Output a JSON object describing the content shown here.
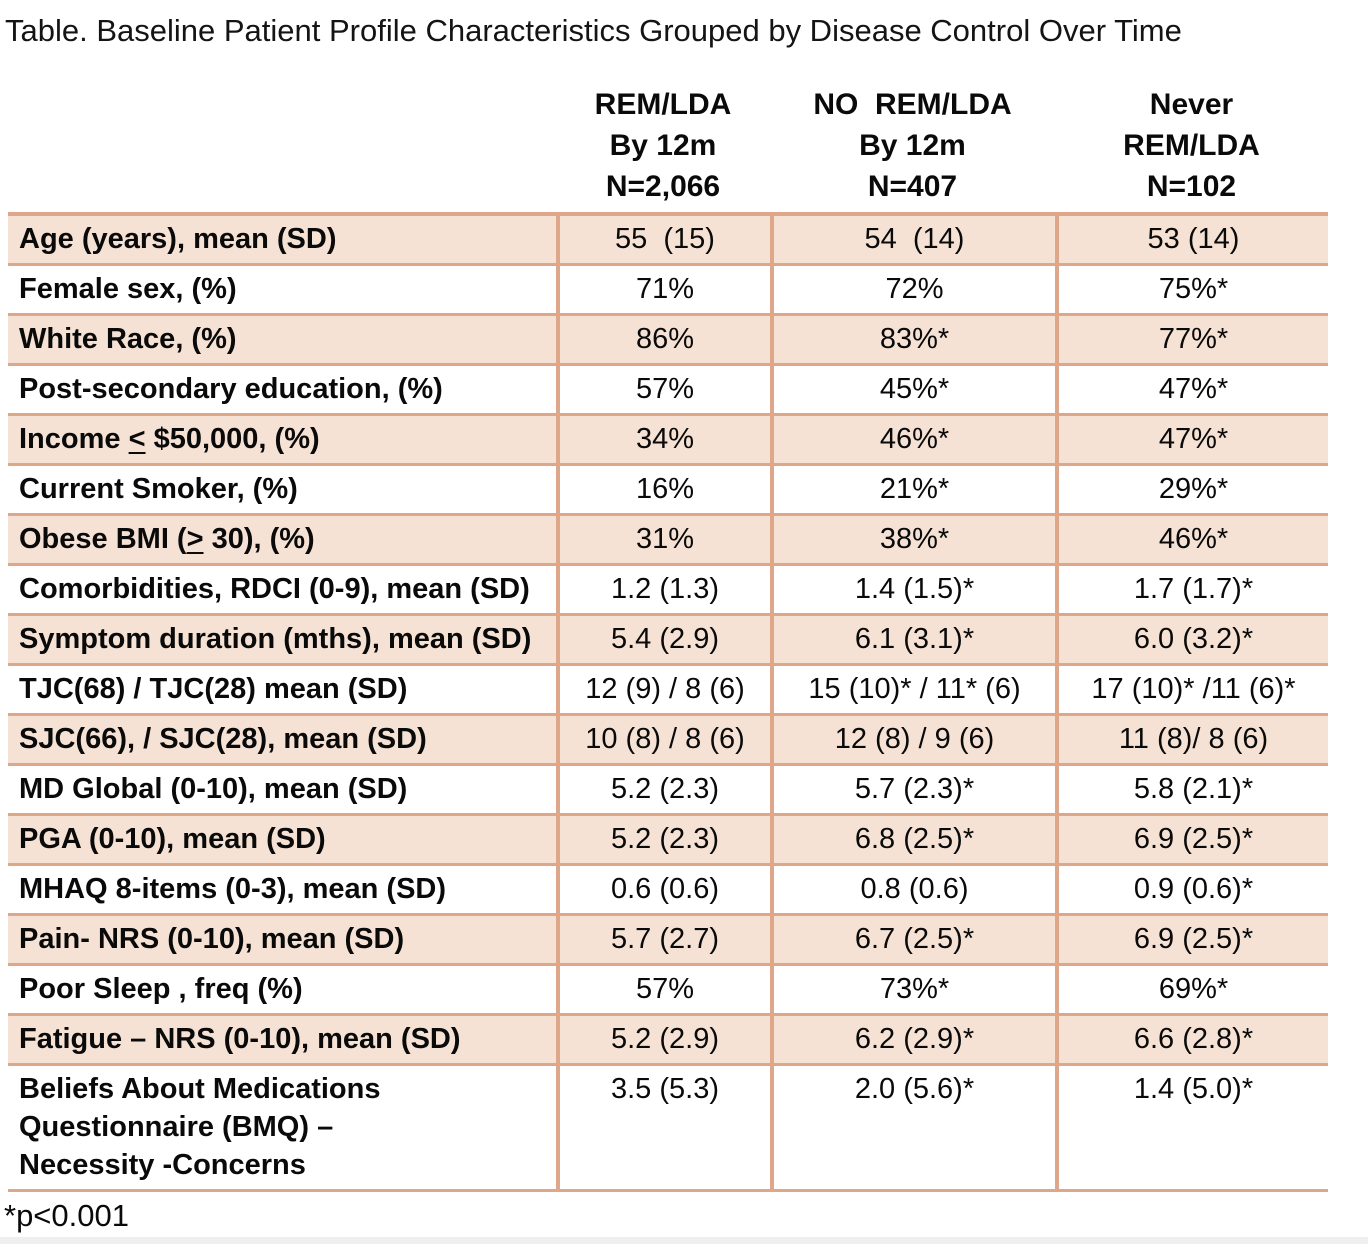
{
  "title": "Table. Baseline Patient Profile Characteristics Grouped by Disease Control Over Time",
  "footnote": "*p<0.001",
  "colors": {
    "row_shade": "#F5E2D4",
    "border": "#DFA78A"
  },
  "columns": [
    {
      "title": "REM/LDA\nBy 12m\nN=2,066"
    },
    {
      "title": "NO  REM/LDA\nBy 12m\nN=407"
    },
    {
      "title": "Never\nREM/LDA\nN=102"
    }
  ],
  "rows": [
    {
      "shaded": true,
      "label": [
        {
          "t": "Age (years), mean (SD)"
        }
      ],
      "values": [
        "55  (15)",
        "54  (14)",
        "53 (14)"
      ]
    },
    {
      "shaded": false,
      "label": [
        {
          "t": "Female sex, (%)"
        }
      ],
      "values": [
        "71%",
        "72%",
        "75%*"
      ]
    },
    {
      "shaded": true,
      "label": [
        {
          "t": "White Race, (%)"
        }
      ],
      "values": [
        "86%",
        "83%*",
        "77%*"
      ]
    },
    {
      "shaded": false,
      "label": [
        {
          "t": "Post-secondary education, (%)"
        }
      ],
      "values": [
        "57%",
        "45%*",
        "47%*"
      ]
    },
    {
      "shaded": true,
      "label": [
        {
          "t": "Income "
        },
        {
          "t": "<",
          "u": true
        },
        {
          "t": " $50,000, (%)"
        }
      ],
      "values": [
        "34%",
        "46%*",
        "47%*"
      ]
    },
    {
      "shaded": false,
      "label": [
        {
          "t": "Current Smoker, (%)"
        }
      ],
      "values": [
        "16%",
        "21%*",
        "29%*"
      ]
    },
    {
      "shaded": true,
      "label": [
        {
          "t": "Obese BMI ("
        },
        {
          "t": ">",
          "u": true
        },
        {
          "t": " 30), (%)"
        }
      ],
      "values": [
        "31%",
        "38%*",
        "46%*"
      ]
    },
    {
      "shaded": false,
      "label": [
        {
          "t": "Comorbidities, RDCI (0-9), mean (SD)"
        }
      ],
      "values": [
        "1.2 (1.3)",
        "1.4 (1.5)*",
        "1.7 (1.7)*"
      ]
    },
    {
      "shaded": true,
      "label": [
        {
          "t": "Symptom duration (mths), mean (SD)"
        }
      ],
      "values": [
        "5.4 (2.9)",
        "6.1 (3.1)*",
        "6.0 (3.2)*"
      ]
    },
    {
      "shaded": false,
      "label": [
        {
          "t": "TJC(68) / TJC(28) mean (SD)"
        }
      ],
      "values": [
        "12 (9) / 8 (6)",
        "15 (10)* / 11* (6)",
        "17 (10)* /11 (6)*"
      ]
    },
    {
      "shaded": true,
      "label": [
        {
          "t": "SJC(66), / SJC(28), mean (SD)"
        }
      ],
      "values": [
        "10 (8) / 8 (6)",
        "12 (8) / 9 (6)",
        "11 (8)/ 8 (6)"
      ]
    },
    {
      "shaded": false,
      "label": [
        {
          "t": "MD Global (0-10), mean (SD)"
        }
      ],
      "values": [
        "5.2 (2.3)",
        "5.7 (2.3)*",
        "5.8 (2.1)*"
      ]
    },
    {
      "shaded": true,
      "label": [
        {
          "t": "PGA (0-10), mean (SD)"
        }
      ],
      "values": [
        "5.2 (2.3)",
        "6.8 (2.5)*",
        "6.9 (2.5)*"
      ]
    },
    {
      "shaded": false,
      "label": [
        {
          "t": "MHAQ 8-items (0-3), mean (SD)"
        }
      ],
      "values": [
        "0.6 (0.6)",
        "0.8 (0.6)",
        "0.9 (0.6)*"
      ]
    },
    {
      "shaded": true,
      "label": [
        {
          "t": "Pain- NRS (0-10), mean (SD)"
        }
      ],
      "values": [
        "5.7 (2.7)",
        "6.7 (2.5)*",
        "6.9 (2.5)*"
      ]
    },
    {
      "shaded": false,
      "label": [
        {
          "t": "Poor Sleep , freq (%)"
        }
      ],
      "values": [
        "57%",
        "73%*",
        "69%*"
      ]
    },
    {
      "shaded": true,
      "label": [
        {
          "t": "Fatigue – NRS (0-10), mean (SD)"
        }
      ],
      "values": [
        "5.2 (2.9)",
        "6.2 (2.9)*",
        "6.6 (2.8)*"
      ]
    },
    {
      "shaded": false,
      "label": [
        {
          "t": "Beliefs About Medications\nQuestionnaire (BMQ) –\nNecessity -Concerns"
        }
      ],
      "values": [
        "3.5 (5.3)",
        "2.0 (5.6)*",
        "1.4 (5.0)*"
      ]
    }
  ]
}
